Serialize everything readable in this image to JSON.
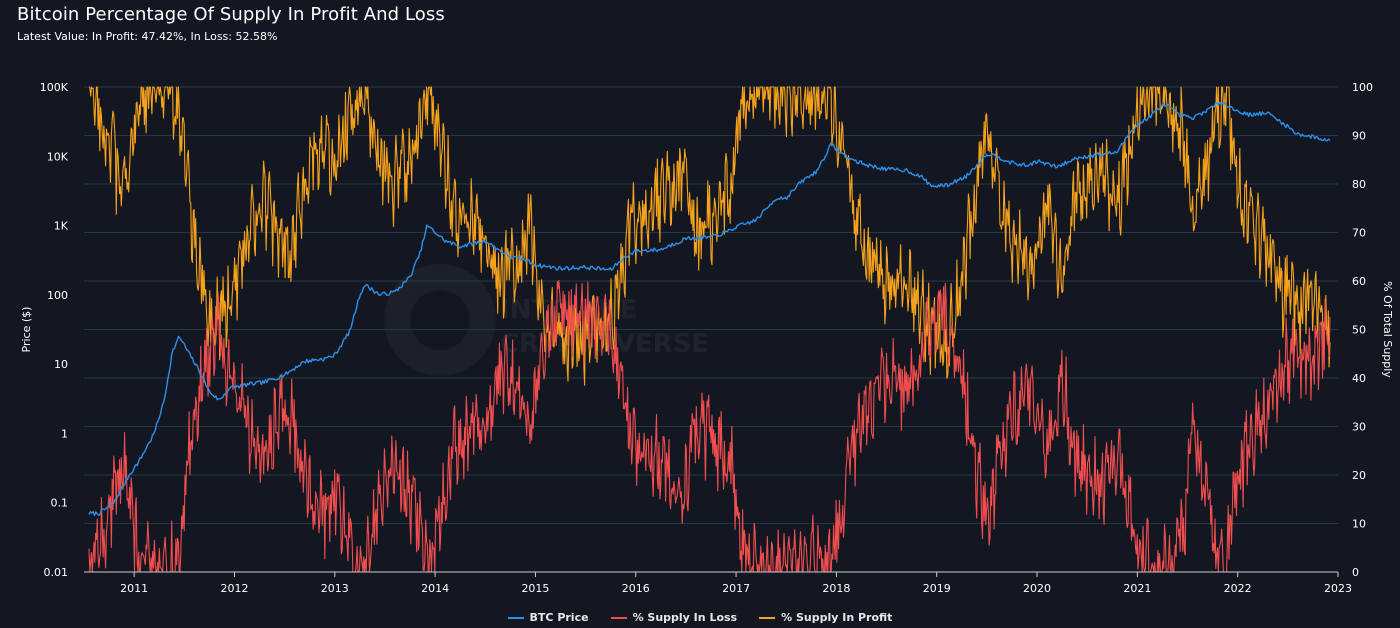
{
  "colors": {
    "background": "#131722",
    "grid": "#2b3446",
    "btc_price": "#2e8fe8",
    "supply_in_loss": "#f04e4e",
    "supply_in_profit": "#f7a21b",
    "text": "#ffffff"
  },
  "watermark": {
    "icon": "into-the-cryptoverse-logo-icon",
    "text_line1": "INTO THE",
    "text_line2": "CRYPTOVERSE"
  },
  "chart_data": {
    "type": "line",
    "title": "Bitcoin Percentage Of Supply In Profit And Loss",
    "subtitle": "Latest Value: In Profit: 47.42%, In Loss: 52.58%",
    "xlabel": "",
    "ylabel_left": "Price ($)",
    "ylabel_right": "% Of Total Supply",
    "x_range": [
      2010.5,
      2023.0
    ],
    "x_ticks": [
      "2011",
      "2012",
      "2013",
      "2014",
      "2015",
      "2016",
      "2017",
      "2018",
      "2019",
      "2020",
      "2021",
      "2022",
      "2023"
    ],
    "y_left": {
      "scale": "log",
      "range": [
        0.01,
        100000
      ],
      "ticks": [
        0.01,
        0.1,
        1,
        10,
        100,
        1000,
        10000,
        100000
      ],
      "tick_labels": [
        "0.01",
        "0.1",
        "1",
        "10",
        "100",
        "1K",
        "10K",
        "100K"
      ]
    },
    "y_right": {
      "scale": "linear",
      "range": [
        0,
        100
      ],
      "ticks": [
        0,
        10,
        20,
        30,
        40,
        50,
        60,
        70,
        80,
        90,
        100
      ],
      "tick_labels": [
        "0",
        "10",
        "20",
        "30",
        "40",
        "50",
        "60",
        "70",
        "80",
        "90",
        "100"
      ]
    },
    "legend": [
      "BTC Price",
      "% Supply In Loss",
      "% Supply In Profit"
    ],
    "legend_position": "bottom-center",
    "series": [
      {
        "name": "BTC Price",
        "axis": "left",
        "x": [
          2010.55,
          2010.65,
          2010.8,
          2010.95,
          2011.05,
          2011.2,
          2011.3,
          2011.38,
          2011.45,
          2011.55,
          2011.65,
          2011.75,
          2011.85,
          2011.95,
          2012.1,
          2012.3,
          2012.5,
          2012.7,
          2012.9,
          2013.0,
          2013.15,
          2013.25,
          2013.3,
          2013.45,
          2013.6,
          2013.75,
          2013.85,
          2013.92,
          2014.0,
          2014.1,
          2014.25,
          2014.5,
          2014.75,
          2014.9,
          2015.0,
          2015.25,
          2015.5,
          2015.75,
          2015.9,
          2016.0,
          2016.25,
          2016.5,
          2016.75,
          2016.9,
          2017.0,
          2017.2,
          2017.4,
          2017.5,
          2017.65,
          2017.8,
          2017.95,
          2018.05,
          2018.15,
          2018.3,
          2018.5,
          2018.7,
          2018.85,
          2018.95,
          2019.1,
          2019.3,
          2019.5,
          2019.6,
          2019.75,
          2019.9,
          2020.0,
          2020.2,
          2020.4,
          2020.6,
          2020.8,
          2020.95,
          2021.1,
          2021.28,
          2021.4,
          2021.55,
          2021.7,
          2021.85,
          2021.95,
          2022.1,
          2022.3,
          2022.45,
          2022.6,
          2022.75,
          2022.92
        ],
        "values": [
          0.07,
          0.07,
          0.1,
          0.25,
          0.4,
          1.0,
          3.0,
          15.0,
          25.0,
          14.0,
          8.0,
          4.0,
          3.0,
          4.5,
          5.0,
          5.5,
          7.0,
          11.0,
          12.0,
          13.5,
          30.0,
          100.0,
          140.0,
          100.0,
          110.0,
          180.0,
          400.0,
          1000.0,
          800.0,
          600.0,
          500.0,
          600.0,
          350.0,
          320.0,
          270.0,
          240.0,
          250.0,
          230.0,
          360.0,
          430.0,
          450.0,
          650.0,
          680.0,
          800.0,
          950.0,
          1200.0,
          2500.0,
          2500.0,
          4300.0,
          6000.0,
          15000.0,
          11000.0,
          9000.0,
          7500.0,
          6500.0,
          6300.0,
          5000.0,
          3700.0,
          3800.0,
          5200.0,
          11000.0,
          10000.0,
          8000.0,
          7300.0,
          8500.0,
          7000.0,
          9500.0,
          10500.0,
          11500.0,
          25000.0,
          35000.0,
          58000.0,
          40000.0,
          35000.0,
          47000.0,
          62000.0,
          48000.0,
          40000.0,
          42000.0,
          30000.0,
          21000.0,
          19000.0,
          16800.0
        ]
      },
      {
        "name": "% Supply In Profit",
        "axis": "right",
        "x": [
          2010.55,
          2010.7,
          2010.9,
          2011.05,
          2011.3,
          2011.45,
          2011.55,
          2011.7,
          2011.8,
          2011.9,
          2012.05,
          2012.25,
          2012.4,
          2012.55,
          2012.75,
          2012.9,
          2013.0,
          2013.2,
          2013.3,
          2013.4,
          2013.55,
          2013.7,
          2013.85,
          2013.95,
          2014.05,
          2014.2,
          2014.35,
          2014.5,
          2014.65,
          2014.8,
          2014.95,
          2015.1,
          2015.3,
          2015.45,
          2015.6,
          2015.75,
          2015.85,
          2015.95,
          2016.1,
          2016.3,
          2016.5,
          2016.6,
          2016.75,
          2016.95,
          2017.05,
          2017.2,
          2017.4,
          2017.6,
          2017.75,
          2017.9,
          2017.98,
          2018.1,
          2018.3,
          2018.5,
          2018.7,
          2018.85,
          2018.95,
          2019.1,
          2019.25,
          2019.4,
          2019.5,
          2019.7,
          2019.85,
          2019.95,
          2020.1,
          2020.25,
          2020.35,
          2020.5,
          2020.65,
          2020.8,
          2020.95,
          2021.05,
          2021.2,
          2021.3,
          2021.45,
          2021.55,
          2021.65,
          2021.8,
          2021.88,
          2022.0,
          2022.15,
          2022.3,
          2022.45,
          2022.6,
          2022.75,
          2022.92
        ],
        "values": [
          100,
          92,
          78,
          98,
          100,
          96,
          75,
          58,
          50,
          55,
          62,
          78,
          70,
          66,
          85,
          88,
          82,
          98,
          100,
          90,
          80,
          82,
          92,
          100,
          88,
          74,
          72,
          68,
          60,
          62,
          72,
          50,
          47,
          48,
          49,
          52,
          60,
          72,
          75,
          78,
          82,
          70,
          72,
          78,
          96,
          100,
          100,
          98,
          97,
          100,
          95,
          82,
          66,
          60,
          63,
          55,
          49,
          47,
          60,
          80,
          90,
          70,
          65,
          62,
          75,
          58,
          75,
          80,
          82,
          75,
          90,
          97,
          100,
          98,
          92,
          72,
          80,
          96,
          100,
          80,
          72,
          66,
          58,
          54,
          58,
          47.42
        ]
      },
      {
        "name": "% Supply In Loss",
        "axis": "right",
        "x": [
          2010.55,
          2010.7,
          2010.9,
          2011.05,
          2011.3,
          2011.45,
          2011.55,
          2011.7,
          2011.8,
          2011.9,
          2012.05,
          2012.25,
          2012.4,
          2012.55,
          2012.75,
          2012.9,
          2013.0,
          2013.2,
          2013.3,
          2013.4,
          2013.55,
          2013.7,
          2013.85,
          2013.95,
          2014.05,
          2014.2,
          2014.35,
          2014.5,
          2014.65,
          2014.8,
          2014.95,
          2015.1,
          2015.3,
          2015.45,
          2015.6,
          2015.75,
          2015.85,
          2015.95,
          2016.1,
          2016.3,
          2016.5,
          2016.6,
          2016.75,
          2016.95,
          2017.05,
          2017.2,
          2017.4,
          2017.6,
          2017.75,
          2017.9,
          2017.98,
          2018.1,
          2018.3,
          2018.5,
          2018.7,
          2018.85,
          2018.95,
          2019.1,
          2019.25,
          2019.4,
          2019.5,
          2019.7,
          2019.85,
          2019.95,
          2020.1,
          2020.25,
          2020.35,
          2020.5,
          2020.65,
          2020.8,
          2020.95,
          2021.05,
          2021.2,
          2021.3,
          2021.45,
          2021.55,
          2021.65,
          2021.8,
          2021.88,
          2022.0,
          2022.15,
          2022.3,
          2022.45,
          2022.6,
          2022.75,
          2022.92
        ],
        "values": [
          0,
          8,
          22,
          2,
          0,
          4,
          25,
          42,
          50,
          45,
          38,
          22,
          30,
          34,
          15,
          12,
          18,
          2,
          0,
          10,
          20,
          18,
          8,
          0,
          12,
          26,
          28,
          32,
          40,
          38,
          28,
          50,
          53,
          52,
          51,
          48,
          40,
          28,
          25,
          22,
          18,
          30,
          28,
          22,
          4,
          0,
          0,
          2,
          3,
          0,
          5,
          18,
          34,
          40,
          37,
          45,
          51,
          53,
          40,
          20,
          10,
          30,
          35,
          38,
          25,
          42,
          25,
          20,
          18,
          25,
          10,
          3,
          0,
          2,
          8,
          28,
          20,
          4,
          0,
          20,
          28,
          34,
          42,
          46,
          42,
          52.58
        ]
      }
    ]
  }
}
